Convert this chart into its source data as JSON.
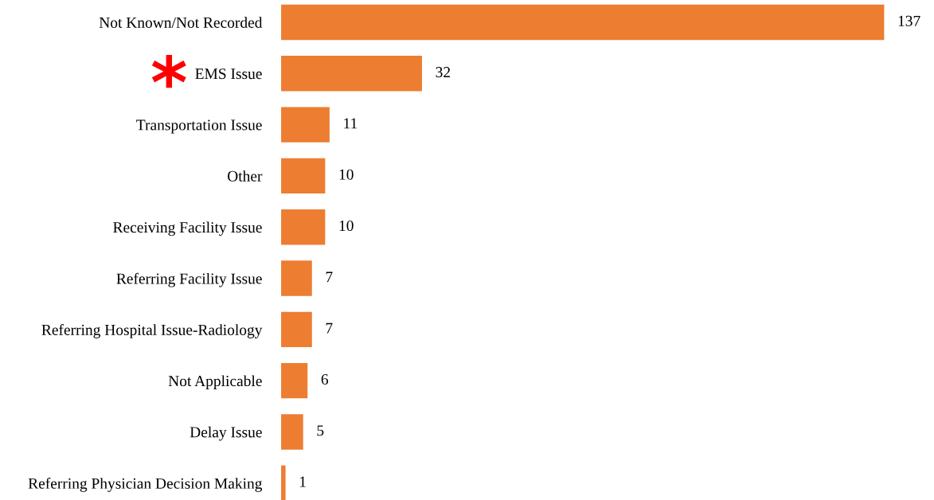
{
  "chart_data": {
    "type": "bar",
    "orientation": "horizontal",
    "categories": [
      "Not Known/Not Recorded",
      "EMS Issue",
      "Transportation Issue",
      "Other",
      "Receiving Facility Issue",
      "Referring Facility Issue",
      "Referring Hospital Issue-Radiology",
      "Not Applicable",
      "Delay Issue",
      "Referring Physician Decision Making"
    ],
    "values": [
      137,
      32,
      11,
      10,
      10,
      7,
      7,
      6,
      5,
      1
    ],
    "color": "#ed7d31",
    "data_labels": true,
    "grid": false,
    "legend": false,
    "annotations": [
      "*"
    ]
  }
}
